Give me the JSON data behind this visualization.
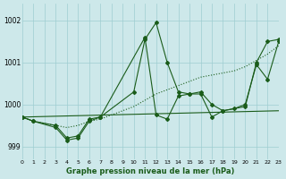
{
  "title": "Graphe pression niveau de la mer (hPa)",
  "bg_color": "#cde8ea",
  "grid_color": "#9ecdd1",
  "line_color": "#1a5c1a",
  "xlim": [
    0,
    23
  ],
  "ylim": [
    998.7,
    1002.4
  ],
  "yticks": [
    999,
    1000,
    1001,
    1002
  ],
  "xticks": [
    0,
    1,
    2,
    3,
    4,
    5,
    6,
    7,
    8,
    9,
    10,
    11,
    12,
    13,
    14,
    15,
    16,
    17,
    18,
    19,
    20,
    21,
    22,
    23
  ],
  "series_dotted": {
    "x": [
      0,
      1,
      2,
      3,
      4,
      5,
      6,
      7,
      8,
      9,
      10,
      11,
      12,
      13,
      14,
      15,
      16,
      17,
      18,
      19,
      20,
      21,
      22,
      23
    ],
    "y": [
      999.7,
      999.6,
      999.55,
      999.5,
      999.45,
      999.5,
      999.6,
      999.65,
      999.75,
      999.85,
      999.95,
      1000.1,
      1000.25,
      1000.35,
      1000.45,
      1000.55,
      1000.65,
      1000.7,
      1000.75,
      1000.8,
      1000.9,
      1001.05,
      1001.2,
      1001.4
    ]
  },
  "series_straight": {
    "x": [
      0,
      23
    ],
    "y": [
      999.7,
      999.85
    ]
  },
  "series_peak": {
    "x": [
      0,
      1,
      3,
      4,
      5,
      6,
      7,
      10,
      11,
      12,
      13,
      14,
      15,
      16,
      17,
      18,
      20,
      21,
      22,
      23
    ],
    "y": [
      999.7,
      999.6,
      999.5,
      999.2,
      999.25,
      999.65,
      999.7,
      1000.3,
      1001.55,
      1001.95,
      1001.0,
      1000.3,
      1000.25,
      1000.3,
      1000.0,
      999.85,
      999.95,
      1001.0,
      1001.5,
      1001.55
    ]
  },
  "series_zigzag": {
    "x": [
      0,
      1,
      3,
      4,
      5,
      6,
      7,
      11,
      12,
      13,
      14,
      15,
      16,
      17,
      18,
      19,
      20,
      21,
      22,
      23
    ],
    "y": [
      999.7,
      999.6,
      999.45,
      999.15,
      999.2,
      999.6,
      999.7,
      1001.6,
      999.75,
      999.65,
      1000.2,
      1000.25,
      1000.25,
      999.7,
      999.85,
      999.9,
      1000.0,
      1000.95,
      1000.6,
      1001.5
    ]
  }
}
